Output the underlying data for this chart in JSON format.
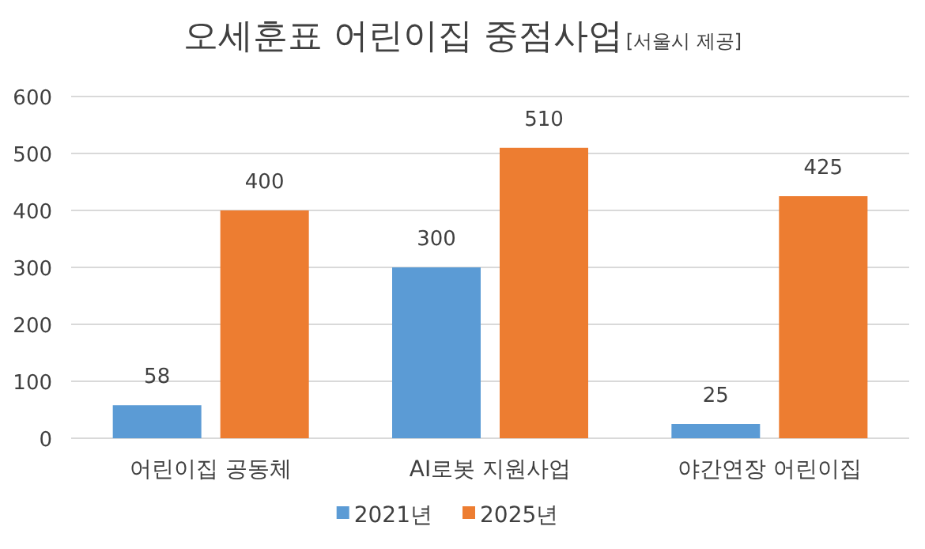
{
  "chart_data": {
    "type": "bar",
    "title": "오세훈표 어린이집 중점사업",
    "annotations": [
      "[서울시 제공]"
    ],
    "categories": [
      "어린이집 공동체",
      "AI로봇 지원사업",
      "야간연장 어린이집"
    ],
    "series": [
      {
        "name": "2021년",
        "color": "#5b9bd5",
        "values": [
          58,
          300,
          25
        ]
      },
      {
        "name": "2025년",
        "color": "#ed7d31",
        "values": [
          400,
          510,
          425
        ]
      }
    ],
    "ylim": [
      0,
      600
    ],
    "yticks": [
      0,
      100,
      200,
      300,
      400,
      500,
      600
    ],
    "grid": "y",
    "data_labels": true,
    "legend": "bottom"
  }
}
